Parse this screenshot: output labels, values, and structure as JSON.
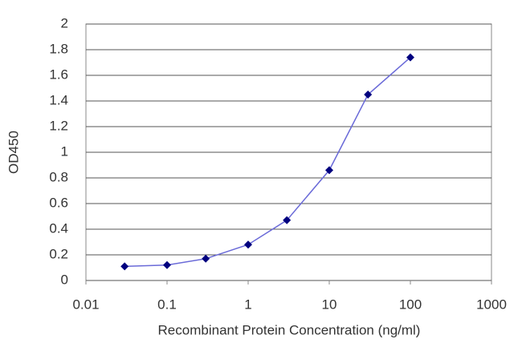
{
  "chart_data": {
    "type": "line",
    "xscale": "log",
    "xlabel": "Recombinant Protein Concentration (ng/ml)",
    "ylabel": "OD450",
    "x": [
      0.03,
      0.1,
      0.3,
      1,
      3,
      10,
      30,
      100
    ],
    "values": [
      0.11,
      0.12,
      0.17,
      0.28,
      0.47,
      0.86,
      1.45,
      1.74
    ],
    "color": "#6a6ad8",
    "marker_color": "#00007f",
    "xlim": [
      0.01,
      1000
    ],
    "xticks": [
      0.01,
      0.1,
      1,
      10,
      100,
      1000
    ],
    "ylim": [
      0,
      2
    ],
    "yticks": [
      0,
      0.2,
      0.4,
      0.6,
      0.8,
      1,
      1.2,
      1.4,
      1.6,
      1.8,
      2
    ],
    "grid": true
  }
}
